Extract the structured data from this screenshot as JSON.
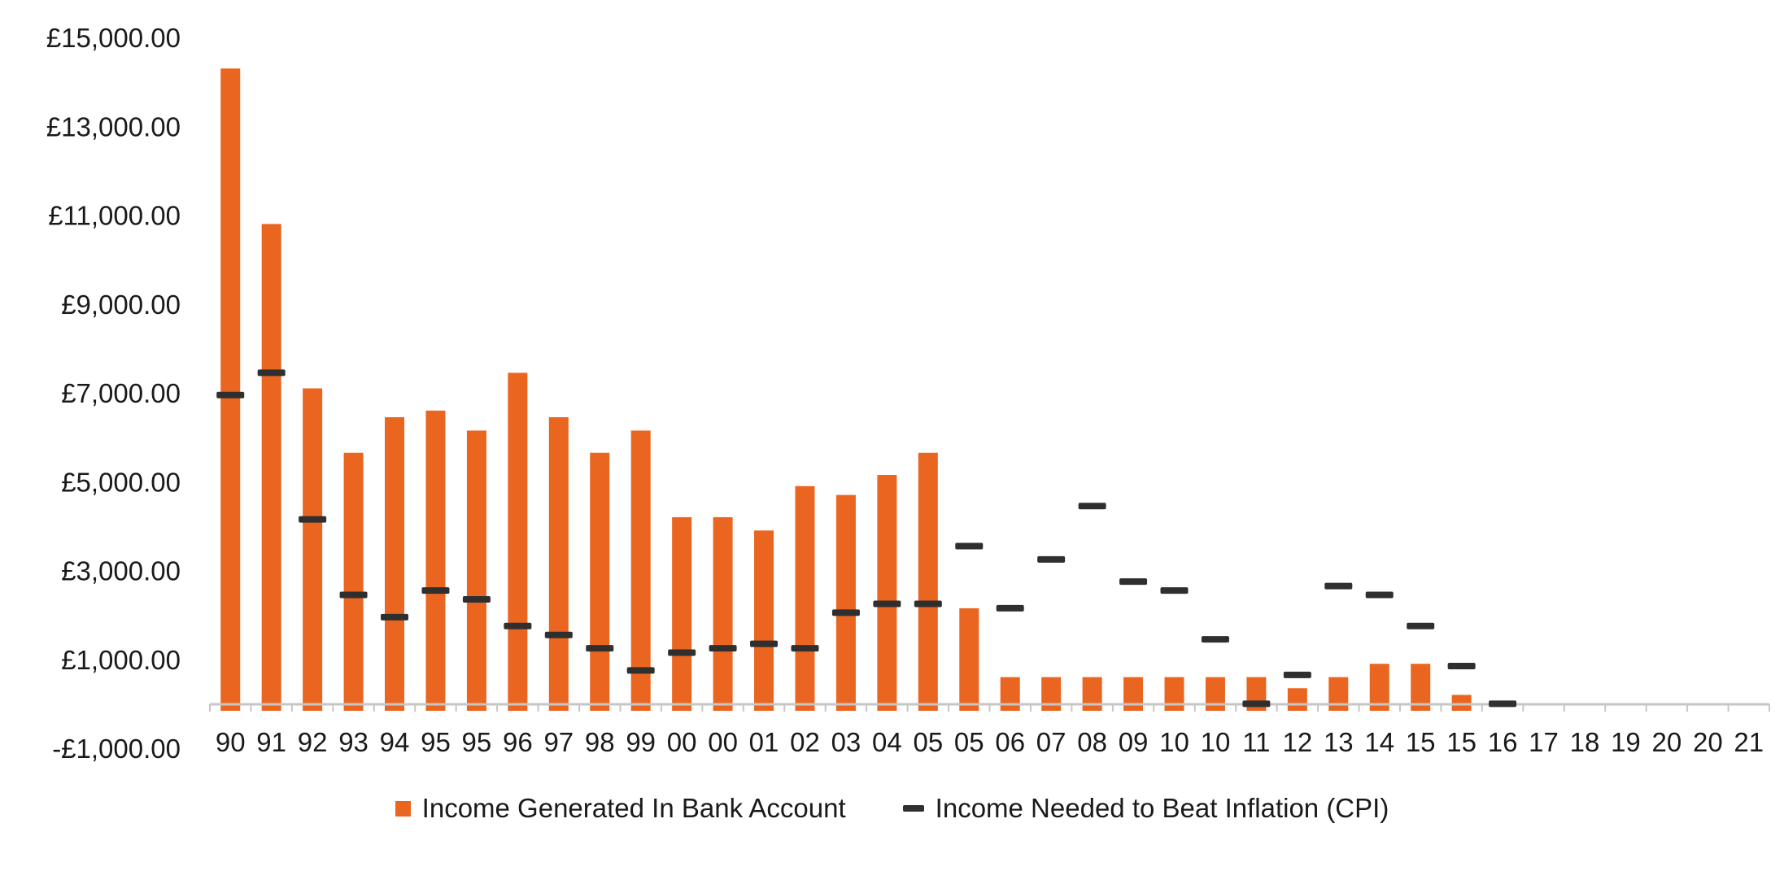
{
  "chart_data": {
    "type": "bar",
    "title": "",
    "xlabel": "",
    "ylabel": "",
    "ylim": [
      -1000,
      15000
    ],
    "y_ticks": [
      "£15,000.00",
      "£13,000.00",
      "£11,000.00",
      "£9,000.00",
      "£7,000.00",
      "£5,000.00",
      "£3,000.00",
      "£1,000.00",
      "-£1,000.00"
    ],
    "y_tick_values": [
      15000,
      13000,
      11000,
      9000,
      7000,
      5000,
      3000,
      1000,
      -1000
    ],
    "categories": [
      "90",
      "91",
      "92",
      "93",
      "94",
      "95",
      "95",
      "96",
      "97",
      "98",
      "99",
      "00",
      "00",
      "01",
      "02",
      "03",
      "04",
      "05",
      "05",
      "06",
      "07",
      "08",
      "09",
      "10",
      "10",
      "11",
      "12",
      "13",
      "14",
      "15",
      "15",
      "16",
      "17",
      "18",
      "19",
      "20",
      "20",
      "21"
    ],
    "series": [
      {
        "name": "Income Generated In Bank Account",
        "kind": "bar",
        "color": "#ea6520",
        "values": [
          14300,
          10800,
          7100,
          5650,
          6450,
          6600,
          6150,
          7450,
          6450,
          5650,
          6150,
          4200,
          4200,
          3900,
          4900,
          4700,
          5150,
          5650,
          2150,
          600,
          600,
          600,
          600,
          600,
          600,
          600,
          350,
          600,
          900,
          900,
          200,
          null,
          null,
          null,
          null,
          null,
          null,
          null
        ]
      },
      {
        "name": "Income Needed to Beat Inflation (CPI)",
        "kind": "marker",
        "color": "#2f2f2f",
        "values": [
          6950,
          7450,
          4150,
          2450,
          1950,
          2550,
          2350,
          1750,
          1550,
          1250,
          750,
          1150,
          1250,
          1350,
          1250,
          2050,
          2250,
          2250,
          3550,
          2150,
          3250,
          4450,
          2750,
          2550,
          1450,
          0,
          650,
          2650,
          2450,
          1750,
          850,
          0,
          null,
          null,
          null,
          null,
          null,
          null
        ]
      }
    ],
    "grid": false,
    "legend_position": "bottom"
  },
  "legend": {
    "bar_label": "Income Generated In Bank Account",
    "marker_label": "Income Needed to Beat Inflation (CPI)"
  }
}
